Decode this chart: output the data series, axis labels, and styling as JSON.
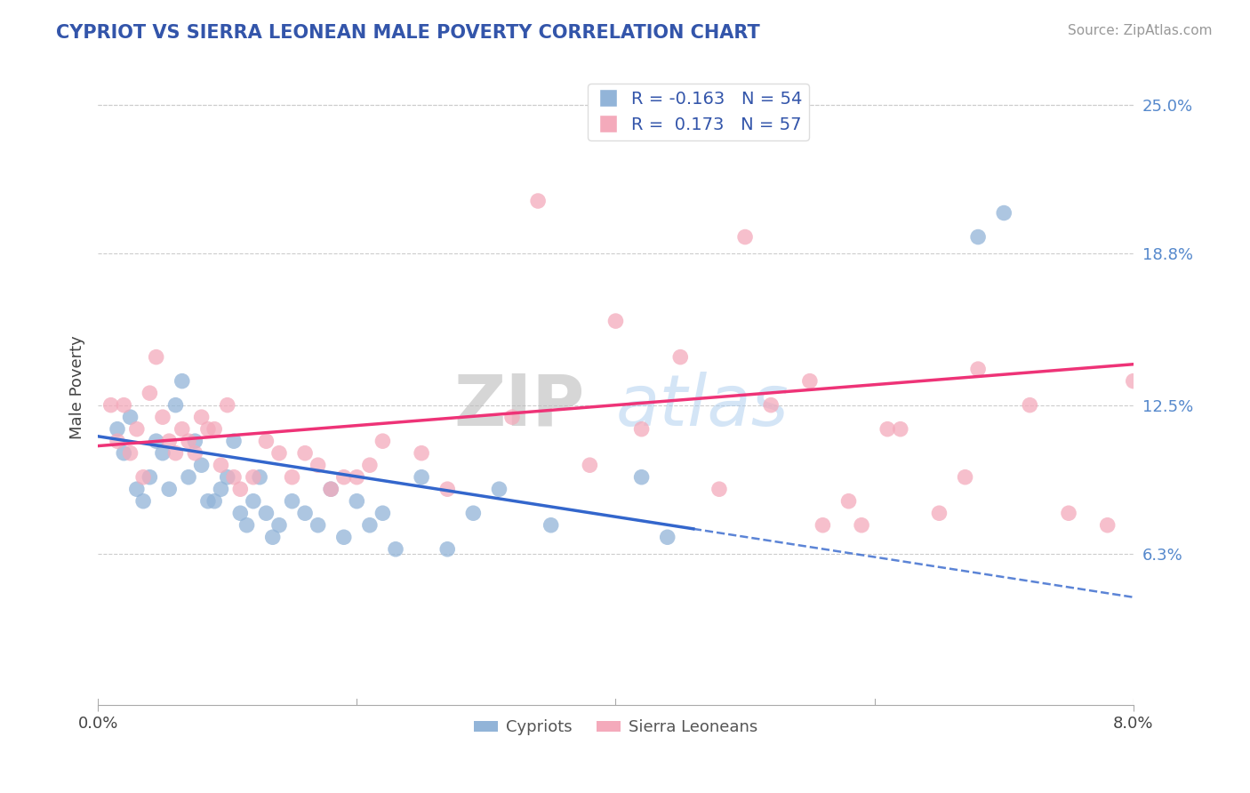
{
  "title": "CYPRIOT VS SIERRA LEONEAN MALE POVERTY CORRELATION CHART",
  "source_text": "Source: ZipAtlas.com",
  "ylabel": "Male Poverty",
  "xlim": [
    0.0,
    8.0
  ],
  "ylim": [
    0.0,
    26.5
  ],
  "ytick_positions": [
    6.3,
    12.5,
    18.8,
    25.0
  ],
  "ytick_labels": [
    "6.3%",
    "12.5%",
    "18.8%",
    "25.0%"
  ],
  "blue_color": "#92B4D8",
  "pink_color": "#F4AABB",
  "line_blue": "#3366CC",
  "line_pink": "#EE3377",
  "watermark_zip": "ZIP",
  "watermark_atlas": "atlas",
  "legend_label1": "Cypriots",
  "legend_label2": "Sierra Leoneans",
  "blue_solid_end": 4.6,
  "cypriot_x": [
    0.15,
    0.2,
    0.25,
    0.3,
    0.35,
    0.4,
    0.45,
    0.5,
    0.55,
    0.6,
    0.65,
    0.7,
    0.75,
    0.8,
    0.85,
    0.9,
    0.95,
    1.0,
    1.05,
    1.1,
    1.15,
    1.2,
    1.25,
    1.3,
    1.35,
    1.4,
    1.5,
    1.6,
    1.7,
    1.8,
    1.9,
    2.0,
    2.1,
    2.2,
    2.3,
    2.5,
    2.7,
    2.9,
    3.1,
    3.5,
    4.2,
    4.4,
    6.8,
    7.0
  ],
  "cypriot_y": [
    11.5,
    10.5,
    12.0,
    9.0,
    8.5,
    9.5,
    11.0,
    10.5,
    9.0,
    12.5,
    13.5,
    9.5,
    11.0,
    10.0,
    8.5,
    8.5,
    9.0,
    9.5,
    11.0,
    8.0,
    7.5,
    8.5,
    9.5,
    8.0,
    7.0,
    7.5,
    8.5,
    8.0,
    7.5,
    9.0,
    7.0,
    8.5,
    7.5,
    8.0,
    6.5,
    9.5,
    6.5,
    8.0,
    9.0,
    7.5,
    9.5,
    7.0,
    19.5,
    20.5
  ],
  "sierra_x": [
    0.1,
    0.15,
    0.2,
    0.25,
    0.3,
    0.35,
    0.4,
    0.45,
    0.5,
    0.55,
    0.6,
    0.65,
    0.7,
    0.75,
    0.8,
    0.85,
    0.9,
    0.95,
    1.0,
    1.05,
    1.1,
    1.2,
    1.3,
    1.4,
    1.5,
    1.6,
    1.7,
    1.8,
    1.9,
    2.0,
    2.1,
    2.2,
    2.5,
    2.7,
    3.2,
    3.4,
    3.8,
    4.2,
    4.5,
    5.0,
    5.2,
    5.5,
    5.8,
    6.2,
    6.5,
    6.8,
    4.0,
    4.8,
    5.6,
    5.9,
    6.1,
    6.7,
    7.2,
    7.5,
    7.8,
    8.0
  ],
  "sierra_y": [
    12.5,
    11.0,
    12.5,
    10.5,
    11.5,
    9.5,
    13.0,
    14.5,
    12.0,
    11.0,
    10.5,
    11.5,
    11.0,
    10.5,
    12.0,
    11.5,
    11.5,
    10.0,
    12.5,
    9.5,
    9.0,
    9.5,
    11.0,
    10.5,
    9.5,
    10.5,
    10.0,
    9.0,
    9.5,
    9.5,
    10.0,
    11.0,
    10.5,
    9.0,
    12.0,
    21.0,
    10.0,
    11.5,
    14.5,
    19.5,
    12.5,
    13.5,
    8.5,
    11.5,
    8.0,
    14.0,
    16.0,
    9.0,
    7.5,
    7.5,
    11.5,
    9.5,
    12.5,
    8.0,
    7.5,
    13.5
  ],
  "blue_line_x0": 0.0,
  "blue_line_y0": 11.2,
  "blue_line_x1": 8.0,
  "blue_line_y1": 4.5,
  "pink_line_x0": 0.0,
  "pink_line_y0": 10.8,
  "pink_line_x1": 8.0,
  "pink_line_y1": 14.2
}
